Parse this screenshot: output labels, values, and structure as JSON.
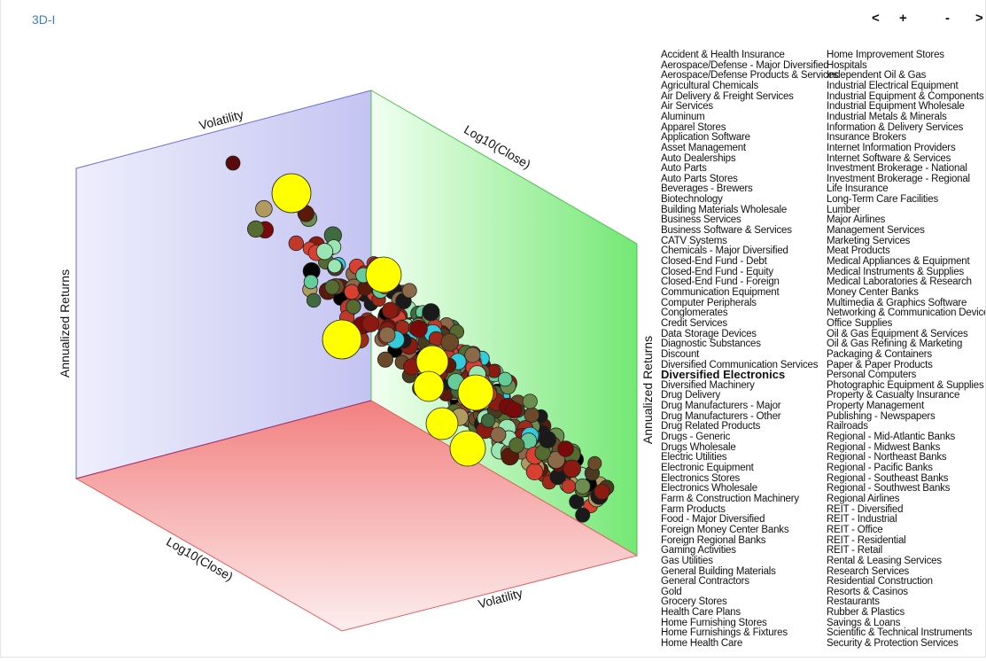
{
  "header": {
    "title": "3D-I",
    "buttons": [
      "<",
      "+",
      "-",
      ">"
    ]
  },
  "plot": {
    "axis_labels": {
      "back_top": "Volatility",
      "right_top": "Log10(Close)",
      "left_vertical": "Annualized Returns",
      "right_vertical": "Annualized Returns",
      "floor_left": "Log10(Close)",
      "floor_front": "Volatility"
    },
    "highlight_color": "#ffff00"
  },
  "legend": {
    "highlighted": 31,
    "items": [
      "Accident & Health Insurance",
      "Aerospace/Defense - Major Diversified",
      "Aerospace/Defense Products & Services",
      "Agricultural Chemicals",
      "Air Delivery & Freight Services",
      "Air Services",
      "Aluminum",
      "Apparel Stores",
      "Application Software",
      "Asset Management",
      "Auto Dealerships",
      "Auto Parts",
      "Auto Parts Stores",
      "Beverages - Brewers",
      "Biotechnology",
      "Building Materials Wholesale",
      "Business Services",
      "Business Software & Services",
      "CATV Systems",
      "Chemicals - Major Diversified",
      "Closed-End Fund - Debt",
      "Closed-End Fund - Equity",
      "Closed-End Fund - Foreign",
      "Communication Equipment",
      "Computer Peripherals",
      "Conglomerates",
      "Credit Services",
      "Data Storage Devices",
      "Diagnostic Substances",
      "Discount",
      "Diversified Communication Services",
      "Diversified Electronics",
      "Diversified Machinery",
      "Drug Delivery",
      "Drug Manufacturers - Major",
      "Drug Manufacturers - Other",
      "Drug Related Products",
      "Drugs - Generic",
      "Drugs Wholesale",
      "Electric Utilities",
      "Electronic Equipment",
      "Electronics Stores",
      "Electronics Wholesale",
      "Farm & Construction Machinery",
      "Farm Products",
      "Food - Major Diversified",
      "Foreign Money Center Banks",
      "Foreign Regional Banks",
      "Gaming Activities",
      "Gas Utilities",
      "General Building Materials",
      "General Contractors",
      "Gold",
      "Grocery Stores",
      "Health Care Plans",
      "Home Furnishing Stores",
      "Home Furnishings & Fixtures",
      "Home Health Care",
      "Home Improvement Stores",
      "Hospitals",
      "Independent Oil & Gas",
      "Industrial Electrical Equipment",
      "Industrial Equipment & Components",
      "Industrial Equipment Wholesale",
      "Industrial Metals & Minerals",
      "Information & Delivery Services",
      "Insurance Brokers",
      "Internet Information Providers",
      "Internet Software & Services",
      "Investment Brokerage - National",
      "Investment Brokerage - Regional",
      "Life Insurance",
      "Long-Term Care Facilities",
      "Lumber",
      "Major Airlines",
      "Management Services",
      "Marketing Services",
      "Meat Products",
      "Medical Appliances & Equipment",
      "Medical Instruments & Supplies",
      "Medical Laboratories & Research",
      "Money Center Banks",
      "Multimedia & Graphics Software",
      "Networking & Communication Devices",
      "Office Supplies",
      "Oil & Gas Equipment & Services",
      "Oil & Gas Refining & Marketing",
      "Packaging & Containers",
      "Paper & Paper Products",
      "Personal Computers",
      "Photographic Equipment & Supplies",
      "Property & Casualty Insurance",
      "Property Management",
      "Publishing - Newspapers",
      "Railroads",
      "Regional - Mid-Atlantic Banks",
      "Regional - Midwest Banks",
      "Regional - Northeast Banks",
      "Regional - Pacific Banks",
      "Regional - Southeast Banks",
      "Regional - Southwest Banks",
      "Regional Airlines",
      "REIT - Diversified",
      "REIT - Industrial",
      "REIT - Office",
      "REIT - Residential",
      "REIT - Retail",
      "Rental & Leasing Services",
      "Research Services",
      "Residential Construction",
      "Resorts & Casinos",
      "Restaurants",
      "Rubber & Plastics",
      "Savings & Loans",
      "Scientific & Technical Instruments",
      "Security & Protection Services"
    ]
  }
}
